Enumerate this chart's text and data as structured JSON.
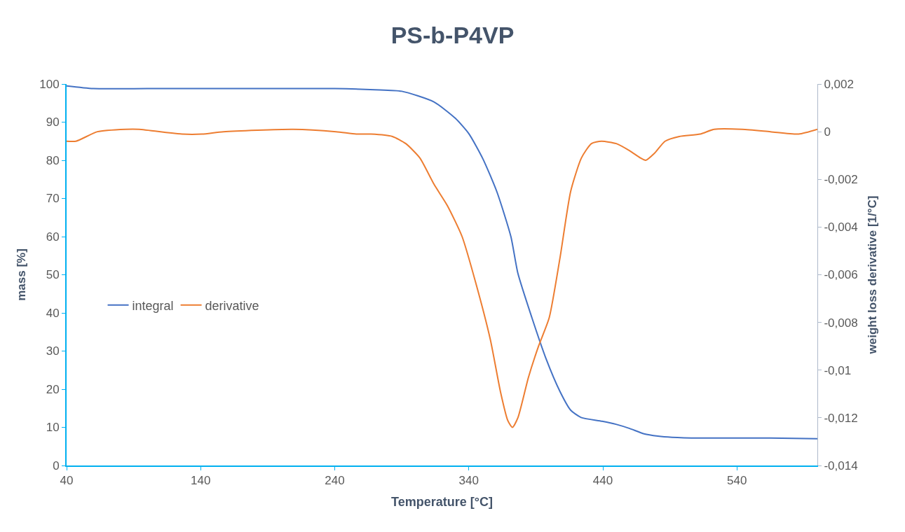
{
  "chart_data": {
    "type": "line",
    "title": "PS-b-P4VP",
    "xlabel": "Temperature [°C]",
    "ylabel": "mass [%]",
    "y2label": "weight loss derivative [1/°C]",
    "xlim": [
      40,
      600
    ],
    "xticks": [
      40,
      140,
      240,
      340,
      440,
      540
    ],
    "ylim": [
      0,
      100
    ],
    "yticks": [
      0,
      10,
      20,
      30,
      40,
      50,
      60,
      70,
      80,
      90,
      100
    ],
    "y2lim": [
      -0.014,
      0.002
    ],
    "y2ticks": [
      {
        "value": -0.014,
        "label": "-0,014"
      },
      {
        "value": -0.012,
        "label": "-0,012"
      },
      {
        "value": -0.01,
        "label": "-0,01"
      },
      {
        "value": -0.008,
        "label": "-0,008"
      },
      {
        "value": -0.006,
        "label": "-0,006"
      },
      {
        "value": -0.004,
        "label": "-0,004"
      },
      {
        "value": -0.002,
        "label": "-0,002"
      },
      {
        "value": 0,
        "label": "0"
      },
      {
        "value": 0.002,
        "label": "0,002"
      }
    ],
    "legend": "left",
    "marker": "none",
    "line_style": "solid",
    "series": [
      {
        "name": "integral",
        "color": "#4472c4",
        "x": [
          40,
          60,
          100,
          140,
          240,
          270,
          290,
          314,
          330,
          340,
          350.5,
          361,
          371.4,
          376.6,
          387,
          397.6,
          408,
          416,
          423.7,
          439.4,
          449.8,
          460,
          470.7,
          481,
          491.6,
          512.6,
          564.8,
          600
        ],
        "values": [
          99.5,
          98.8,
          98.8,
          98.8,
          98.8,
          98.5,
          98.1,
          95.3,
          91,
          87,
          80.4,
          71.7,
          60,
          50.4,
          38.8,
          28,
          19.4,
          14.5,
          12.6,
          11.6,
          10.8,
          9.7,
          8.3,
          7.7,
          7.4,
          7.2,
          7.2,
          7.0
        ]
      },
      {
        "name": "derivative",
        "color": "#ed7d31",
        "axis": "y2",
        "x": [
          40,
          47,
          63,
          84,
          94,
          126,
          141,
          157,
          209,
          241,
          256,
          267,
          283,
          293,
          303.5,
          314,
          324,
          335,
          345,
          356,
          363.6,
          369,
          372.5,
          376.6,
          384.5,
          392,
          400,
          408,
          416,
          424,
          431.5,
          439,
          450,
          460,
          468,
          472,
          478.6,
          486.4,
          497,
          512.6,
          523,
          544,
          565,
          586,
          600
        ],
        "values": [
          -0.0004,
          -0.0004,
          0,
          0.0001,
          0.0001,
          -0.0001,
          -0.0001,
          0,
          0.0001,
          0,
          -0.0001,
          -0.0001,
          -0.0002,
          -0.0005,
          -0.0011,
          -0.0022,
          -0.0031,
          -0.0044,
          -0.0063,
          -0.0087,
          -0.0109,
          -0.0121,
          -0.0124,
          -0.012,
          -0.0103,
          -0.009,
          -0.0078,
          -0.0053,
          -0.0025,
          -0.0011,
          -0.0005,
          -0.0004,
          -0.0005,
          -0.0008,
          -0.0011,
          -0.0012,
          -0.0009,
          -0.0004,
          -0.0002,
          -0.0001,
          0.0001,
          0.0001,
          0,
          -0.0001,
          0.0001
        ]
      }
    ]
  }
}
